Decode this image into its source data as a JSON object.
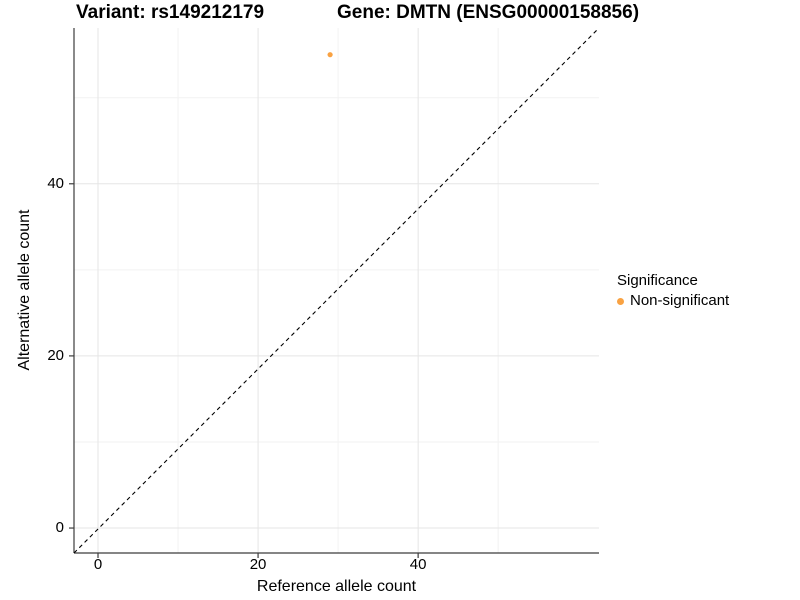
{
  "chart_data": {
    "type": "scatter",
    "title_left": "Variant: rs149212179",
    "title_right": "Gene: DMTN (ENSG00000158856)",
    "xlabel": "Reference allele count",
    "ylabel": "Alternative allele count",
    "xlim": [
      -3,
      62.6
    ],
    "ylim": [
      -2.9,
      58.1
    ],
    "x_major_ticks": [
      0,
      20,
      40
    ],
    "y_major_ticks": [
      0,
      20,
      40
    ],
    "x_minor_ticks": [
      10,
      30,
      50
    ],
    "y_minor_ticks": [
      10,
      30,
      50
    ],
    "grid": true,
    "points": [
      {
        "x": 29,
        "y": 55,
        "series": "Non-significant"
      }
    ],
    "identity_line": {
      "style": "dashed",
      "corner_to_corner": true
    },
    "legend": {
      "title": "Significance",
      "position": "right",
      "entries": [
        {
          "label": "Non-significant",
          "color": "#F9A242"
        }
      ]
    }
  },
  "colors": {
    "point": "#F9A242",
    "grid_major": "#E5E5E5",
    "grid_minor": "#F2F2F2",
    "axis_line": "#3C3C3C",
    "diagonal_line": "#000000",
    "text": "#000000",
    "background": "#FFFFFF"
  }
}
